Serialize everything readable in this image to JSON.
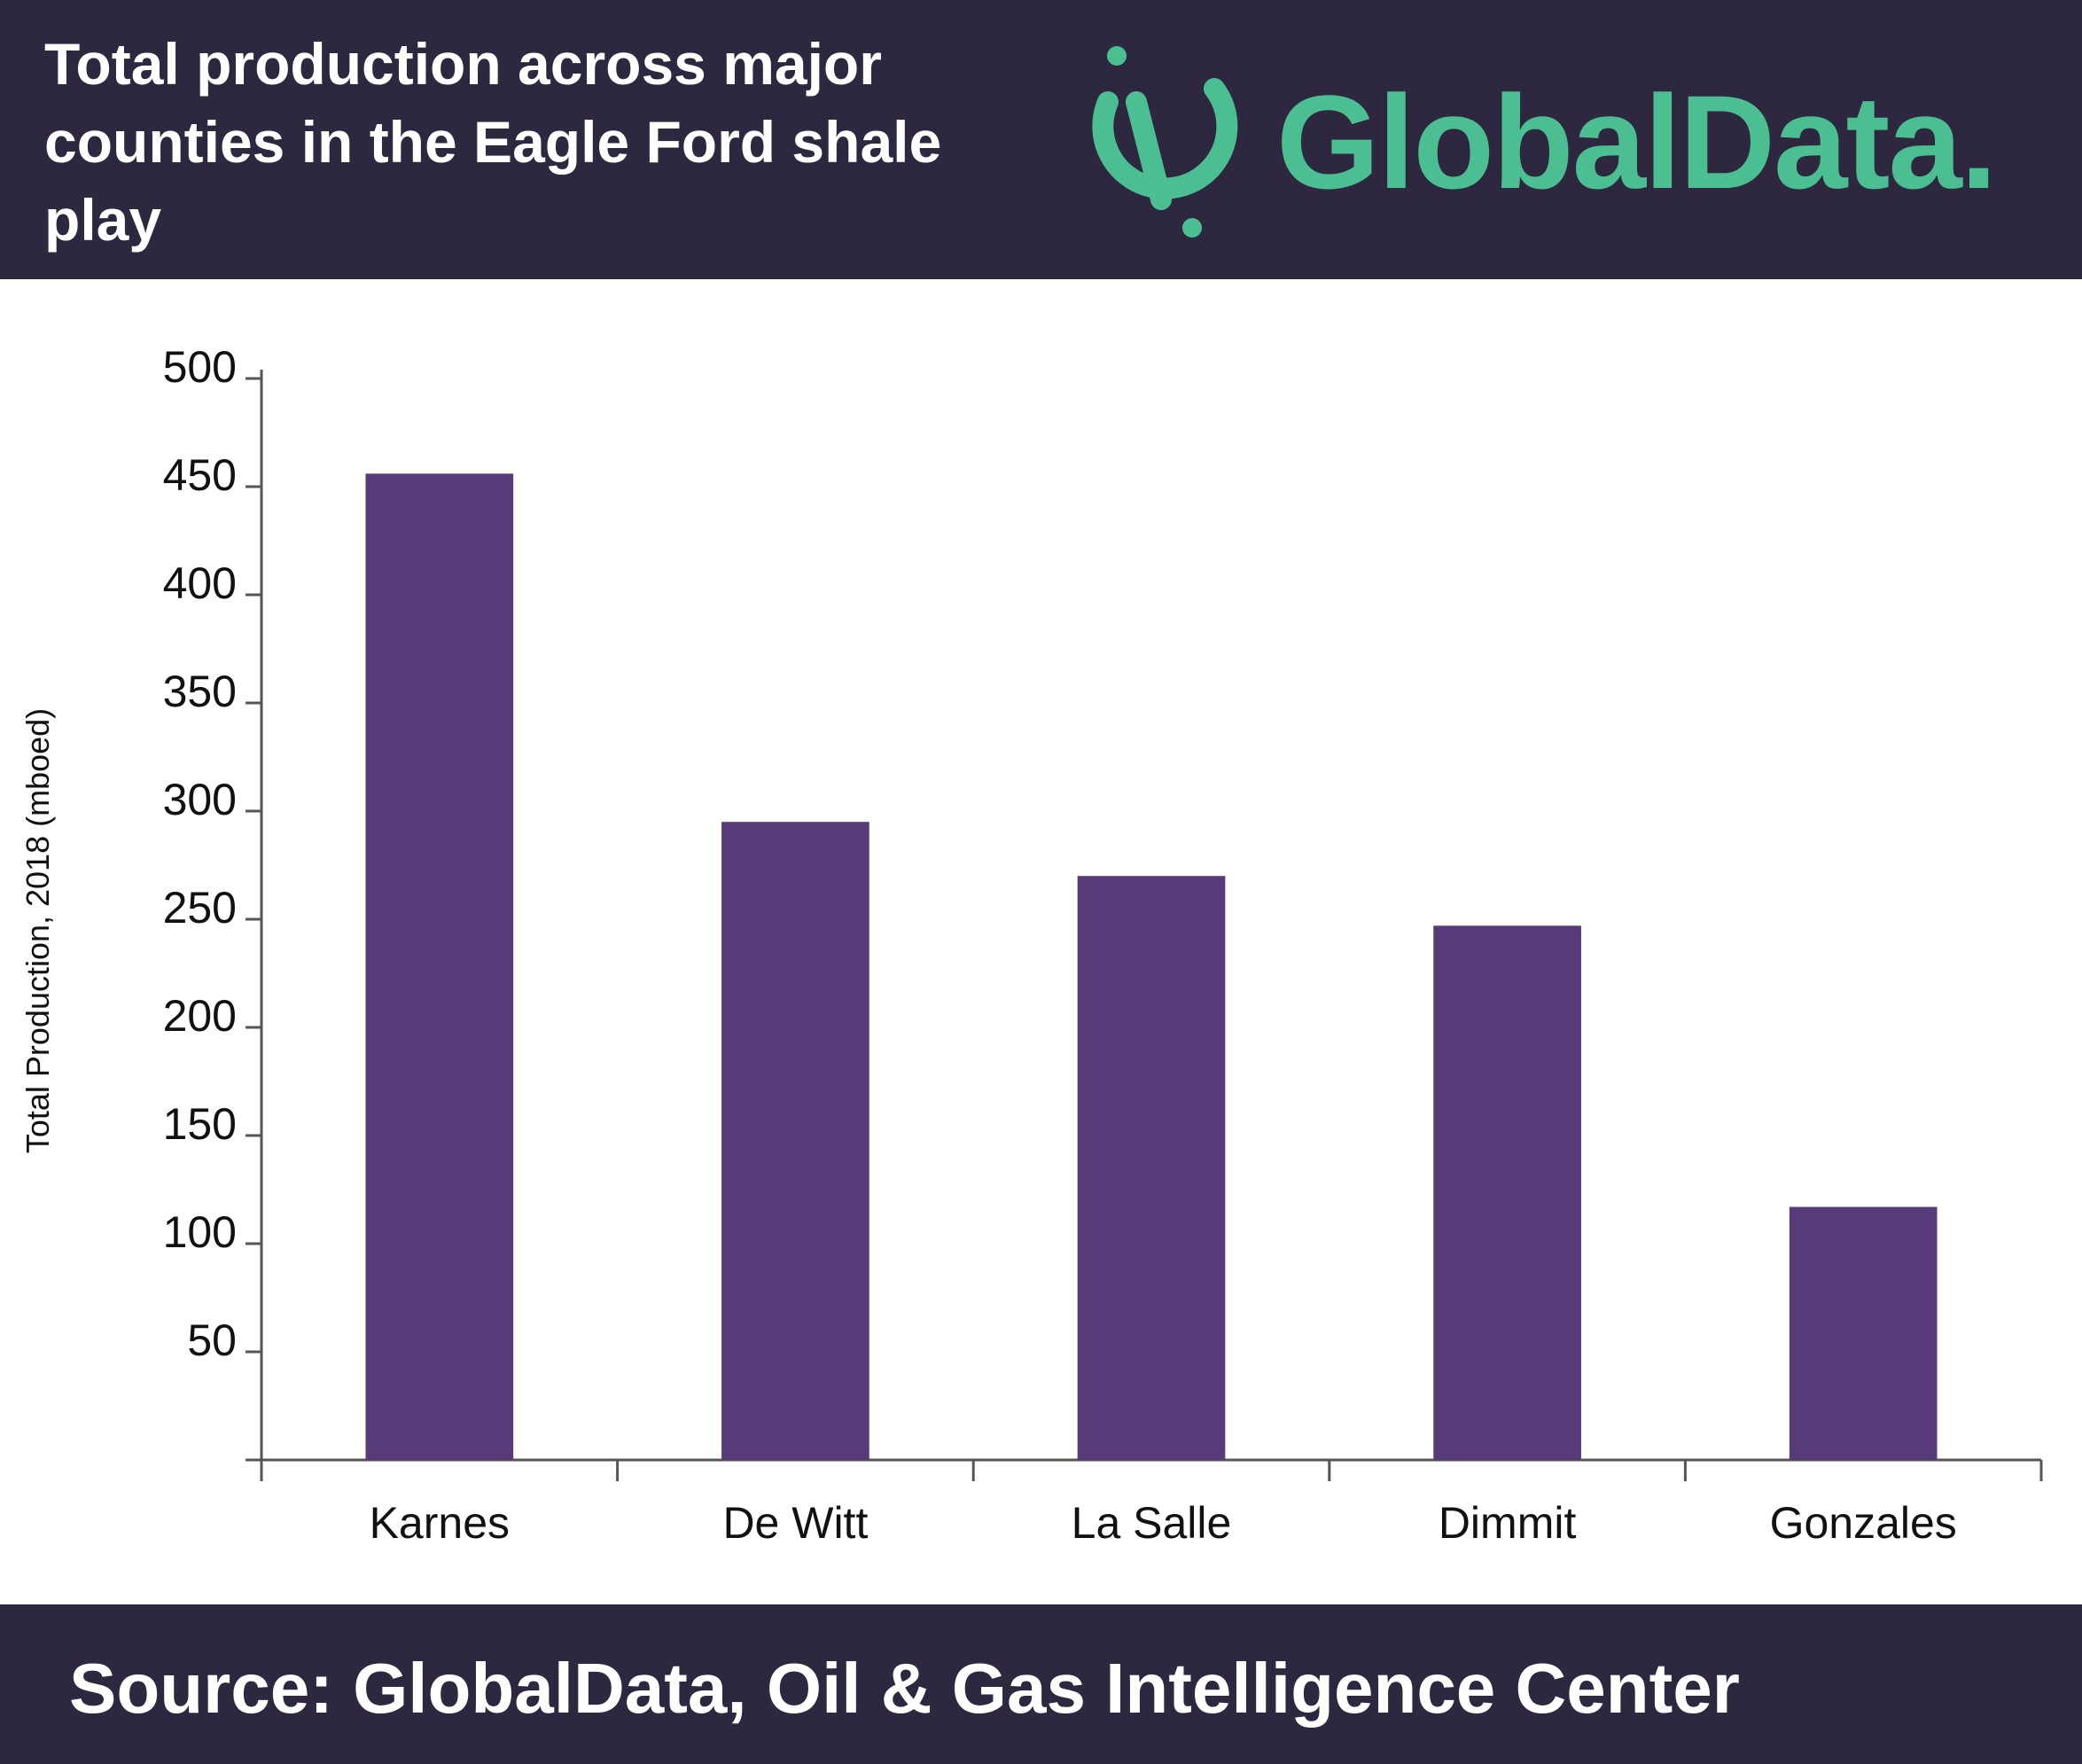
{
  "header": {
    "title": "Total production across major counties in the Eagle Ford shale play",
    "logo_text": "GlobalData."
  },
  "colors": {
    "header_bg": "#2d273f",
    "bar": "#573a78",
    "logo": "#4cbf92",
    "axis": "#555555"
  },
  "chart_data": {
    "type": "bar",
    "categories": [
      "Karnes",
      "De Witt",
      "La Salle",
      "Dimmit",
      "Gonzales"
    ],
    "values": [
      456,
      295,
      270,
      247,
      117
    ],
    "title": "",
    "xlabel": "",
    "ylabel": "Total Production, 2018 (mboed)",
    "ylim": [
      0,
      500
    ],
    "yticks": [
      50,
      100,
      150,
      200,
      250,
      300,
      350,
      400,
      450,
      500
    ],
    "grid": false,
    "legend": "none"
  },
  "footer": {
    "source": "Source: GlobalData, Oil & Gas Intelligence Center"
  }
}
